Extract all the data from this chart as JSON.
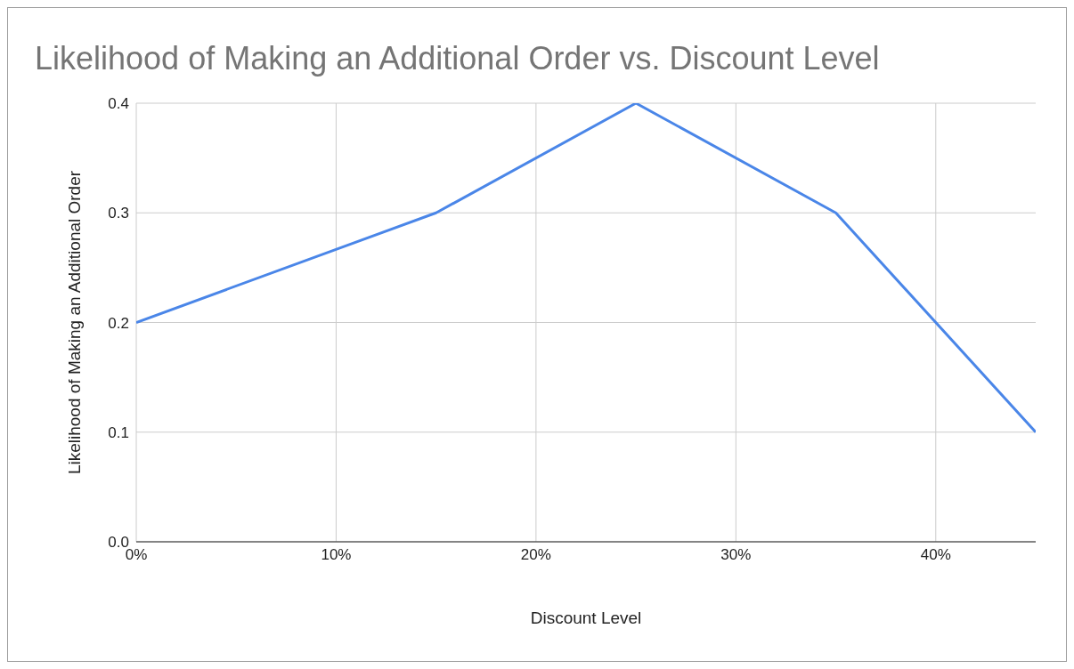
{
  "chart_data": {
    "type": "line",
    "title": "Likelihood of Making an Additional Order vs. Discount Level",
    "xlabel": "Discount Level",
    "ylabel": "Likelihood of Making an Additional Order",
    "x": [
      0,
      15,
      25,
      35,
      45
    ],
    "series": [
      {
        "color": "#4a86e8",
        "values": [
          0.2,
          0.3,
          0.4,
          0.3,
          0.1
        ]
      }
    ],
    "xlim": [
      0,
      45
    ],
    "xticks": [
      {
        "value": 0,
        "label": "0%"
      },
      {
        "value": 10,
        "label": "10%"
      },
      {
        "value": 20,
        "label": "20%"
      },
      {
        "value": 30,
        "label": "30%"
      },
      {
        "value": 40,
        "label": "40%"
      }
    ],
    "ylim": [
      0,
      0.4
    ],
    "yticks": [
      {
        "value": 0,
        "label": "0.0"
      },
      0.1,
      0.2,
      0.3,
      0.4
    ],
    "grid": true,
    "legend": false
  }
}
